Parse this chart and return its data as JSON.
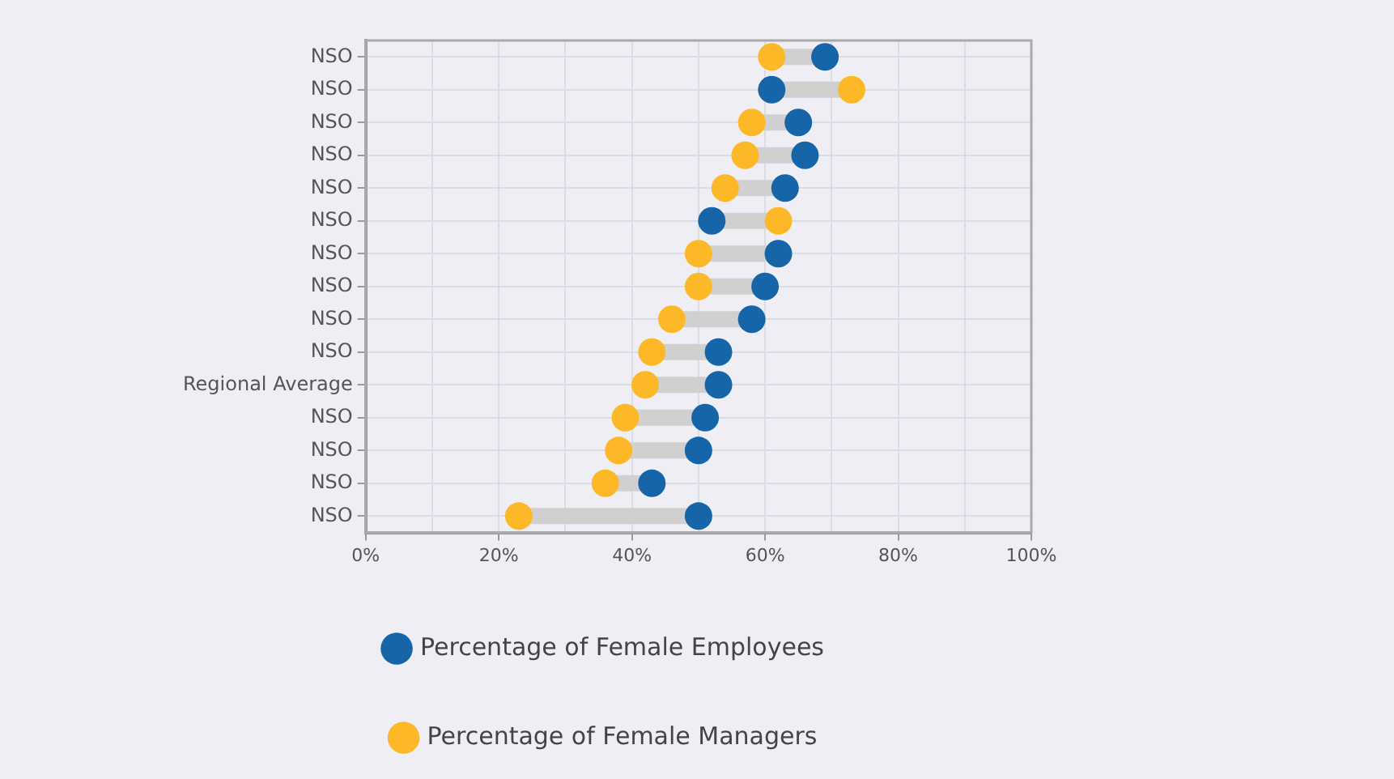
{
  "chart_data": {
    "type": "scatter",
    "orientation": "horizontal",
    "categories": [
      "NSO",
      "NSO",
      "NSO",
      "NSO",
      "NSO",
      "NSO",
      "NSO",
      "NSO",
      "NSO",
      "NSO",
      "Regional Average",
      "NSO",
      "NSO",
      "NSO",
      "NSO"
    ],
    "series": [
      {
        "name": "Percentage of Female Employees",
        "color": "#1565a8",
        "values": [
          69,
          61,
          65,
          66,
          63,
          52,
          62,
          60,
          58,
          53,
          53,
          51,
          50,
          43,
          50
        ]
      },
      {
        "name": "Percentage of Female Managers",
        "color": "#fdb827",
        "values": [
          61,
          73,
          58,
          57,
          54,
          62,
          50,
          50,
          46,
          43,
          42,
          39,
          38,
          36,
          23
        ]
      }
    ],
    "xlim": [
      0,
      100
    ],
    "xticks": [
      {
        "value": 0,
        "label": "0%"
      },
      {
        "value": 10,
        "label": null
      },
      {
        "value": 20,
        "label": "20%"
      },
      {
        "value": 30,
        "label": null
      },
      {
        "value": 40,
        "label": "40%"
      },
      {
        "value": 50,
        "label": null
      },
      {
        "value": 60,
        "label": "60%"
      },
      {
        "value": 70,
        "label": null
      },
      {
        "value": 80,
        "label": "80%"
      },
      {
        "value": 90,
        "label": null
      },
      {
        "value": 100,
        "label": "100%"
      }
    ],
    "grid": true,
    "legend": "bottom",
    "marker": "circle"
  }
}
